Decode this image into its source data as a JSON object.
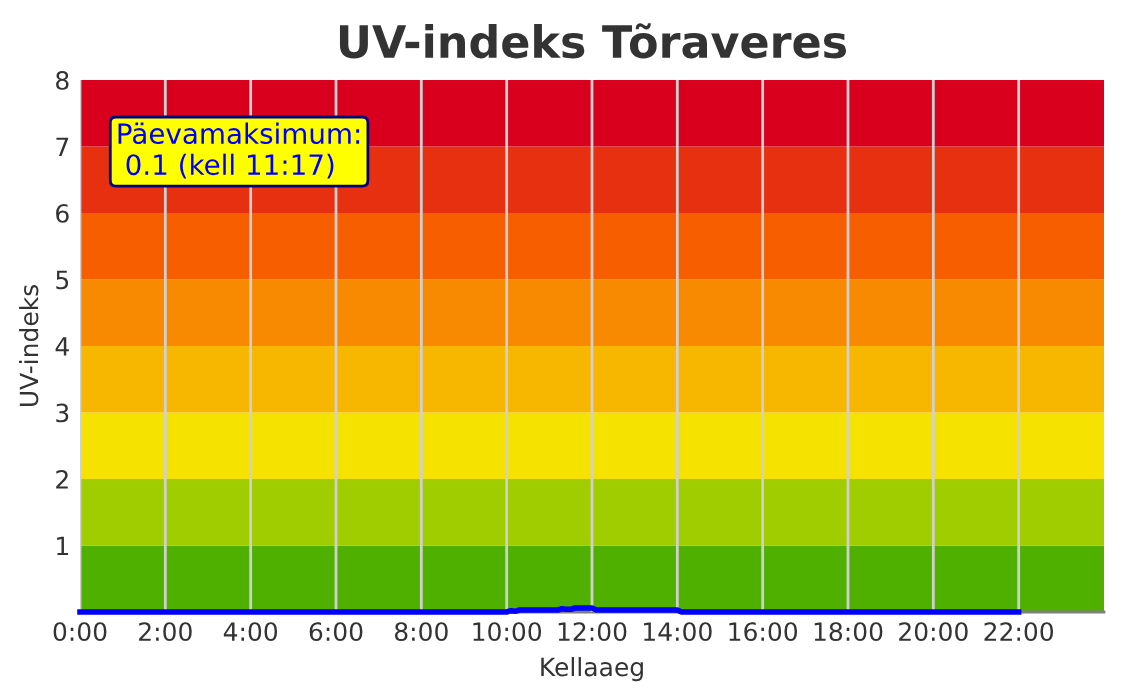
{
  "chart_data": {
    "type": "line",
    "title": "UV-indeks Tõraveres",
    "xlabel": "Kellaaeg",
    "ylabel": "UV-indeks",
    "series": [
      {
        "color": "#0000ff",
        "x": [
          0,
          2,
          4,
          6,
          8,
          10,
          10.1,
          10.2,
          10.3,
          10.5,
          11,
          11.2,
          11.3,
          11.4,
          11.5,
          11.6,
          11.8,
          12,
          12.1,
          12.5,
          13,
          13.5,
          14,
          14.1,
          16,
          18,
          20,
          22
        ],
        "values": [
          0,
          0,
          0,
          0,
          0,
          0,
          0.02,
          0.01,
          0.03,
          0.03,
          0.03,
          0.03,
          0.05,
          0.04,
          0.04,
          0.06,
          0.06,
          0.06,
          0.03,
          0.03,
          0.03,
          0.03,
          0.03,
          0,
          0,
          0,
          0,
          0
        ]
      }
    ],
    "xlim": [
      0,
      24
    ],
    "ylim": [
      0,
      8
    ],
    "xticks": [
      {
        "value": 0,
        "label": "0:00"
      },
      {
        "value": 2,
        "label": "2:00"
      },
      {
        "value": 4,
        "label": "4:00"
      },
      {
        "value": 6,
        "label": "6:00"
      },
      {
        "value": 8,
        "label": "8:00"
      },
      {
        "value": 10,
        "label": "10:00"
      },
      {
        "value": 12,
        "label": "12:00"
      },
      {
        "value": 14,
        "label": "14:00"
      },
      {
        "value": 16,
        "label": "16:00"
      },
      {
        "value": 18,
        "label": "18:00"
      },
      {
        "value": 20,
        "label": "20:00"
      },
      {
        "value": 22,
        "label": "22:00"
      }
    ],
    "yticks": [
      1,
      2,
      3,
      4,
      5,
      6,
      7,
      8
    ],
    "bands": [
      {
        "axis": "y",
        "from": 0,
        "to": 1,
        "color": "#4fb000"
      },
      {
        "axis": "y",
        "from": 1,
        "to": 2,
        "color": "#a0cd00"
      },
      {
        "axis": "y",
        "from": 2,
        "to": 3,
        "color": "#f5e200"
      },
      {
        "axis": "y",
        "from": 3,
        "to": 4,
        "color": "#f7b600"
      },
      {
        "axis": "y",
        "from": 4,
        "to": 5,
        "color": "#f78a00"
      },
      {
        "axis": "y",
        "from": 5,
        "to": 6,
        "color": "#f75e00"
      },
      {
        "axis": "y",
        "from": 6,
        "to": 7,
        "color": "#e7300f"
      },
      {
        "axis": "y",
        "from": 7,
        "to": 8,
        "color": "#d8001d"
      }
    ],
    "grid": "x",
    "line_style": "solid",
    "marker": "none",
    "annotations": [
      "Päevamaksimum:\n 0.1 (kell 11:17)"
    ]
  }
}
